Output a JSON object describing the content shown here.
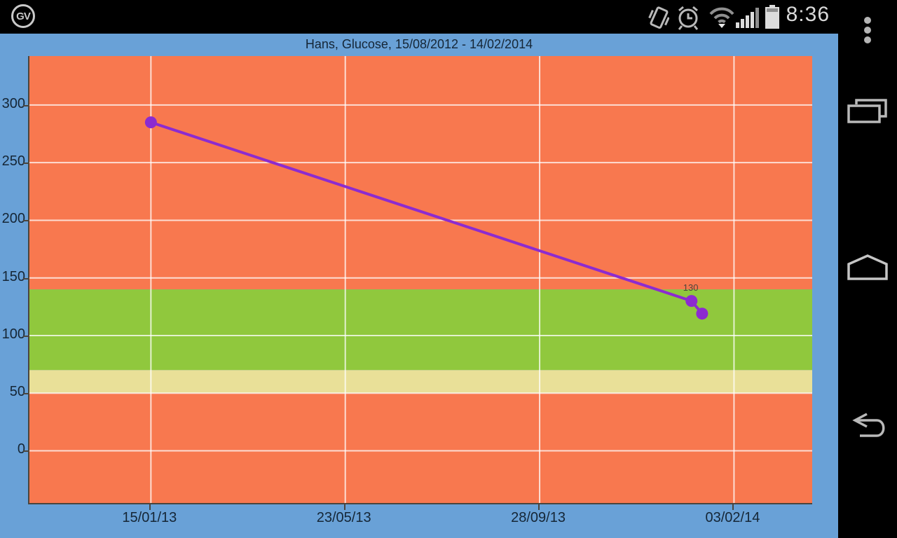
{
  "status_bar": {
    "app_icon_text": "GV",
    "time": "8:36",
    "icons": [
      "vibrate-icon",
      "alarm-icon",
      "wifi-icon",
      "signal-icon",
      "battery-icon"
    ]
  },
  "nav_bar": {
    "items": [
      "overflow-menu",
      "recent-apps",
      "home",
      "back"
    ]
  },
  "app": {
    "title": "Hans, Glucose, 15/08/2012 - 14/02/2014"
  },
  "colors": {
    "background_blue": "#69a1d7",
    "band_high_orange": "#f8784f",
    "band_target_green": "#90c83d",
    "band_warning_yellow": "#e9e098",
    "series_purple": "#8c2bd0",
    "axis_text": "#152636",
    "gridline": "rgba(255,255,255,0.75)"
  },
  "chart_data": {
    "type": "line",
    "title": "Hans, Glucose, 15/08/2012 - 14/02/2014",
    "xlabel": "",
    "ylabel": "",
    "grid": true,
    "legend": "none",
    "x_axis": {
      "tick_labels": [
        "15/01/13",
        "23/05/13",
        "28/09/13",
        "03/02/14"
      ],
      "tick_day_offsets": [
        0,
        128,
        256,
        384
      ],
      "range_days": [
        -80,
        435.5
      ]
    },
    "y_axis": {
      "ticks": [
        0,
        50,
        100,
        150,
        200,
        250,
        300
      ],
      "range": [
        -45.3,
        342.5
      ]
    },
    "bands": [
      {
        "name": "high-orange",
        "from": 140,
        "to": 342.5,
        "color": "#f8784f"
      },
      {
        "name": "target-green",
        "from": 70,
        "to": 140,
        "color": "#90c83d"
      },
      {
        "name": "warning-yellow",
        "from": 50,
        "to": 70,
        "color": "#e9e098"
      },
      {
        "name": "low-orange",
        "from": -45.3,
        "to": 50,
        "color": "#f8784f"
      }
    ],
    "series": [
      {
        "name": "Glucose",
        "color": "#8c2bd0",
        "points": [
          {
            "date": "15/01/13",
            "x_day": 0,
            "value": 285,
            "label": ""
          },
          {
            "date": "06/01/14",
            "x_day": 356,
            "value": 130,
            "label": "130"
          },
          {
            "date": "13/01/14",
            "x_day": 363,
            "value": 119,
            "label": ""
          }
        ]
      }
    ]
  }
}
